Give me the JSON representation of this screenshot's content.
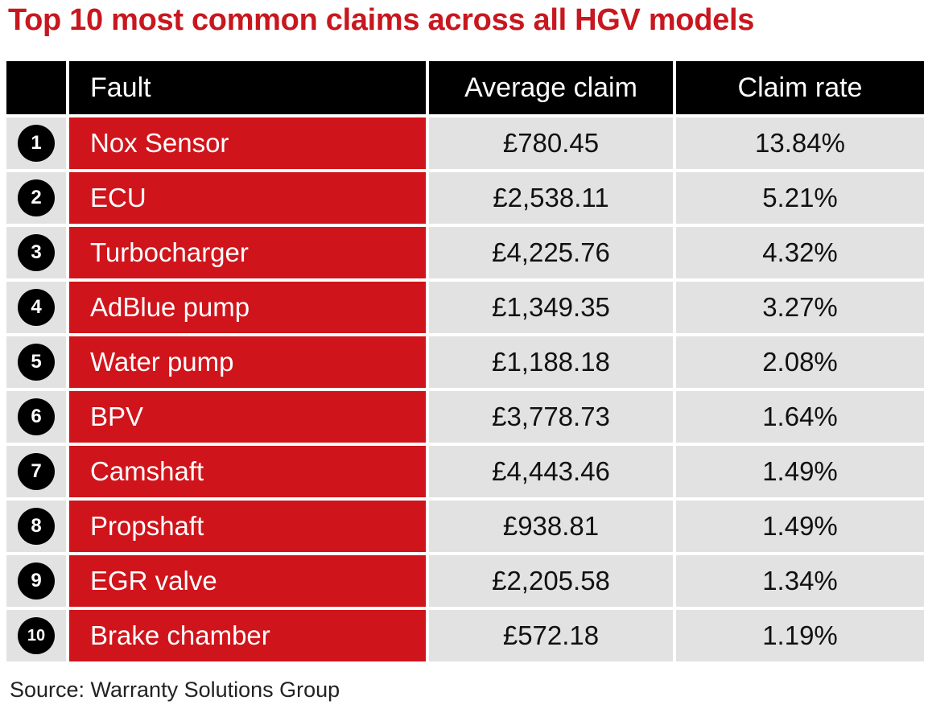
{
  "title": "Top 10 most common claims across all HGV models",
  "columns": [
    "",
    "Fault",
    "Average claim",
    "Claim rate"
  ],
  "rows": [
    {
      "rank": "1",
      "fault": "Nox Sensor",
      "average_claim": "£780.45",
      "claim_rate": "13.84%"
    },
    {
      "rank": "2",
      "fault": "ECU",
      "average_claim": "£2,538.11",
      "claim_rate": "5.21%"
    },
    {
      "rank": "3",
      "fault": "Turbocharger",
      "average_claim": "£4,225.76",
      "claim_rate": "4.32%"
    },
    {
      "rank": "4",
      "fault": "AdBlue pump",
      "average_claim": "£1,349.35",
      "claim_rate": "3.27%"
    },
    {
      "rank": "5",
      "fault": "Water pump",
      "average_claim": "£1,188.18",
      "claim_rate": "2.08%"
    },
    {
      "rank": "6",
      "fault": "BPV",
      "average_claim": "£3,778.73",
      "claim_rate": "1.64%"
    },
    {
      "rank": "7",
      "fault": "Camshaft",
      "average_claim": "£4,443.46",
      "claim_rate": "1.49%"
    },
    {
      "rank": "8",
      "fault": "Propshaft",
      "average_claim": "£938.81",
      "claim_rate": "1.49%"
    },
    {
      "rank": "9",
      "fault": "EGR valve",
      "average_claim": "£2,205.58",
      "claim_rate": "1.34%"
    },
    {
      "rank": "10",
      "fault": "Brake chamber",
      "average_claim": "£572.18",
      "claim_rate": "1.19%"
    }
  ],
  "source": "Source: Warranty Solutions Group",
  "colors": {
    "title": "#c8171e",
    "fault_cell": "#d0141b",
    "header": "#000000",
    "value_cell": "#e2e2e2",
    "rank_badge": "#000000"
  },
  "chart_data": {
    "type": "table",
    "title": "Top 10 most common claims across all HGV models",
    "columns": [
      "",
      "Fault",
      "Average claim",
      "Claim rate"
    ],
    "rows": [
      [
        "1",
        "Nox Sensor",
        "£780.45",
        "13.84%"
      ],
      [
        "2",
        "ECU",
        "£2,538.11",
        "5.21%"
      ],
      [
        "3",
        "Turbocharger",
        "£4,225.76",
        "4.32%"
      ],
      [
        "4",
        "AdBlue pump",
        "£1,349.35",
        "3.27%"
      ],
      [
        "5",
        "Water pump",
        "£1,188.18",
        "2.08%"
      ],
      [
        "6",
        "BPV",
        "£3,778.73",
        "1.64%"
      ],
      [
        "7",
        "Camshaft",
        "£4,443.46",
        "1.49%"
      ],
      [
        "8",
        "Propshaft",
        "£938.81",
        "1.49%"
      ],
      [
        "9",
        "EGR valve",
        "£2,205.58",
        "1.34%"
      ],
      [
        "10",
        "Brake chamber",
        "£572.18",
        "1.19%"
      ]
    ],
    "source": "Source: Warranty Solutions Group"
  }
}
